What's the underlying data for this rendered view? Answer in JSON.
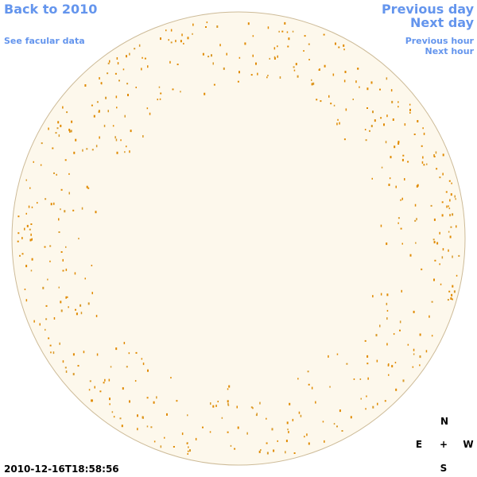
{
  "navigation": {
    "back": "Back to 2010",
    "facular": "See facular data",
    "previous_day": "Previous day",
    "next_day": "Next day",
    "previous_hour": "Previous hour",
    "next_hour": "Next hour"
  },
  "timestamp": "2010-12-16T18:58:56",
  "compass": {
    "north": "N",
    "east": "E",
    "center": "+",
    "west": "W",
    "south": "S"
  }
}
